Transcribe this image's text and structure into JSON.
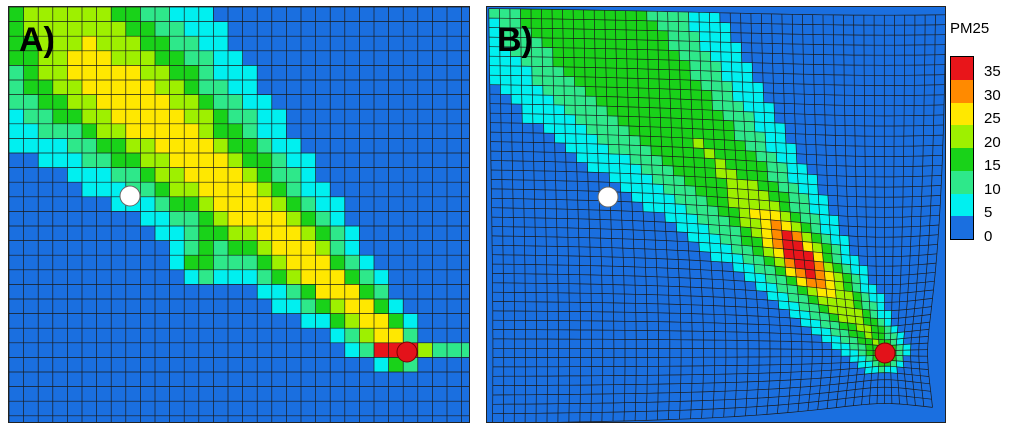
{
  "panel_a": {
    "label": "A)"
  },
  "panel_b": {
    "label": "B)"
  },
  "legend": {
    "title": "PM25",
    "ticks": [
      "35",
      "30",
      "25",
      "20",
      "15",
      "10",
      "5",
      "0"
    ],
    "colors": [
      "#e8151a",
      "#ff8a00",
      "#ffe800",
      "#9ef000",
      "#19d219",
      "#2ee88a",
      "#00f0f0",
      "#1a6fe0",
      "#0a2be8"
    ]
  },
  "markers": {
    "white_color": "#ffffff",
    "red_color": "#e3121a"
  },
  "palette": {
    "background": "#1a6fe0",
    "grid_line": "#1b1b1b"
  }
}
